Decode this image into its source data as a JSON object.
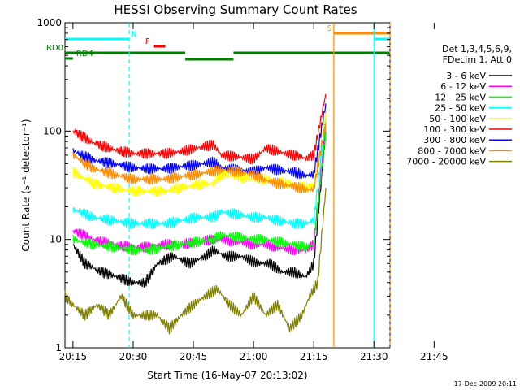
{
  "chart_data": {
    "type": "line",
    "title": "HESSI Observing Summary Count Rates",
    "xlabel": "Start Time (16-May-07 20:13:02)",
    "ylabel": "Count Rate (s⁻¹ detector⁻¹)",
    "yscale": "log",
    "ylim": [
      1,
      1000
    ],
    "xlim_min": [
      13,
      94
    ],
    "x_ticks": [
      "20:15",
      "20:30",
      "20:45",
      "21:00",
      "21:15",
      "21:30",
      "21:45"
    ],
    "y_ticks": [
      "1",
      "10",
      "100",
      "1000"
    ],
    "legend_header": [
      "Det 1,3,4,5,6,9,",
      "FDecim 1, Att 0"
    ],
    "series": [
      {
        "name": "3 - 6 keV",
        "color": "#000000",
        "x": [
          15,
          18,
          22,
          26,
          30,
          33,
          36,
          40,
          44,
          48,
          50,
          53,
          57,
          61,
          64,
          67,
          70,
          73,
          75,
          78
        ],
        "values": [
          9,
          6,
          5,
          4.5,
          4,
          4,
          6,
          7,
          6,
          7,
          8,
          7,
          7,
          6,
          6,
          5,
          5,
          4.5,
          6,
          100
        ]
      },
      {
        "name": "6 - 12 keV",
        "color": "#ff00ff",
        "x": [
          15,
          20,
          25,
          30,
          34,
          38,
          42,
          46,
          50,
          52,
          56,
          60,
          63,
          66,
          70,
          73,
          75,
          78
        ],
        "values": [
          12,
          10,
          9,
          8.5,
          8.5,
          9,
          9,
          9.5,
          10,
          10,
          9.5,
          9,
          9,
          8.5,
          8,
          8,
          9,
          120
        ]
      },
      {
        "name": "12 - 25 keV",
        "color": "#00ff00",
        "x": [
          15,
          20,
          25,
          30,
          34,
          38,
          42,
          46,
          50,
          52,
          56,
          60,
          63,
          66,
          70,
          73,
          75,
          78
        ],
        "values": [
          10,
          9,
          8.5,
          8,
          8,
          8.5,
          9,
          9.5,
          10,
          11,
          10.5,
          10,
          10,
          9.5,
          9,
          8.5,
          9,
          100
        ]
      },
      {
        "name": "25 - 50 keV",
        "color": "#00ffff",
        "x": [
          15,
          20,
          25,
          30,
          34,
          38,
          42,
          46,
          50,
          52,
          56,
          60,
          63,
          66,
          70,
          73,
          75,
          78
        ],
        "values": [
          19,
          16,
          15,
          14,
          14,
          14,
          15,
          16,
          16,
          18,
          17,
          16,
          16,
          15,
          14,
          14,
          15,
          130
        ]
      },
      {
        "name": "50 - 100 keV",
        "color": "#ffff00",
        "x": [
          15,
          20,
          25,
          30,
          34,
          38,
          42,
          46,
          50,
          52,
          56,
          60,
          63,
          66,
          70,
          73,
          75,
          78
        ],
        "values": [
          42,
          33,
          30,
          28,
          28,
          28,
          30,
          32,
          33,
          40,
          38,
          36,
          36,
          34,
          32,
          30,
          31,
          150
        ]
      },
      {
        "name": "100 - 300 keV",
        "color": "#ff0000",
        "x": [
          15,
          20,
          25,
          30,
          34,
          38,
          42,
          46,
          50,
          52,
          56,
          60,
          63,
          66,
          70,
          73,
          75,
          78
        ],
        "values": [
          100,
          78,
          68,
          62,
          62,
          62,
          65,
          70,
          75,
          60,
          58,
          55,
          70,
          65,
          60,
          56,
          60,
          220
        ]
      },
      {
        "name": "300 - 800 keV",
        "color": "#0000ff",
        "x": [
          15,
          20,
          25,
          30,
          34,
          38,
          42,
          46,
          50,
          52,
          56,
          60,
          63,
          66,
          70,
          73,
          75,
          78
        ],
        "values": [
          66,
          54,
          50,
          46,
          45,
          45,
          47,
          49,
          52,
          46,
          44,
          42,
          46,
          44,
          42,
          39,
          40,
          180
        ]
      },
      {
        "name": "800 - 7000 keV",
        "color": "#ff8c00",
        "x": [
          15,
          20,
          25,
          30,
          34,
          38,
          42,
          46,
          50,
          52,
          56,
          60,
          63,
          66,
          70,
          73,
          75,
          78
        ],
        "values": [
          60,
          45,
          40,
          36,
          36,
          36,
          38,
          40,
          43,
          44,
          42,
          40,
          35,
          33,
          31,
          29,
          29,
          120
        ]
      },
      {
        "name": "7000 - 20000 keV",
        "color": "#808000",
        "x": [
          13,
          15,
          18,
          21,
          24,
          27,
          30,
          33,
          36,
          39,
          42,
          45,
          48,
          51,
          54,
          57,
          60,
          63,
          66,
          69,
          72,
          74,
          76,
          78
        ],
        "values": [
          3,
          2.5,
          2,
          2.5,
          2,
          3,
          2,
          2,
          2,
          1.5,
          2,
          2.5,
          3,
          3.5,
          2.5,
          2,
          3,
          2,
          2.5,
          1.5,
          2,
          3,
          4,
          30
        ]
      }
    ],
    "flags": [
      {
        "label": "N",
        "color": "#00ffff",
        "x_start": 13,
        "x_end": 29
      },
      {
        "label": "",
        "color": "#00ffff",
        "x_start": 90,
        "x_end": 94
      },
      {
        "label": "S",
        "color": "#ff8c00",
        "x_start": 80,
        "x_end": 94
      },
      {
        "label": "F",
        "color": "#ff0000",
        "x_start": 35,
        "x_end": 38
      },
      {
        "label": "RD0",
        "color": "#008000",
        "x_start": 13,
        "x_end": 94
      },
      {
        "label": "RD4",
        "color": "#008000",
        "x_start": 13,
        "x_end": 15
      }
    ],
    "vlines_cyan": [
      29,
      90
    ],
    "vlines_orange": [
      80,
      94
    ]
  },
  "footer": {
    "date": "17-Dec-2009 20:11"
  }
}
